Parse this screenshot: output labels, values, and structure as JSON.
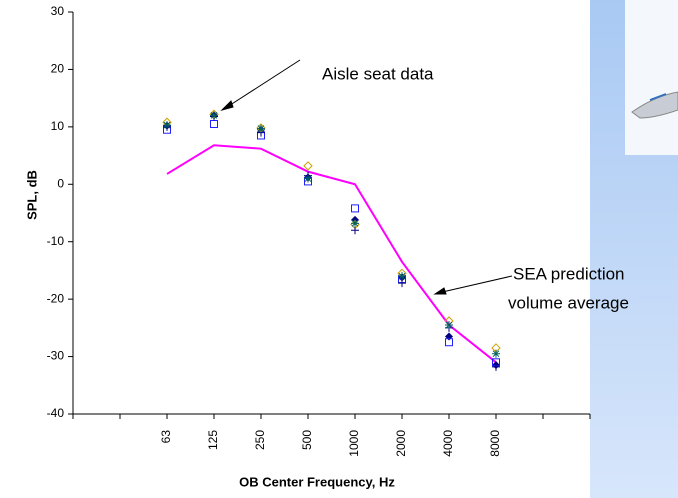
{
  "chart_data": {
    "type": "line",
    "y_label": "SPL, dB",
    "x_label": "OB Center Frequency, Hz",
    "categories": [
      null,
      null,
      "63",
      "125",
      "250",
      "500",
      "1000",
      "2000",
      "4000",
      "8000",
      null,
      null
    ],
    "ylim": [
      -40,
      30
    ],
    "yticks": [
      -40,
      -30,
      -20,
      -10,
      0,
      10,
      20,
      30
    ],
    "grid": false,
    "series": [
      {
        "style": "line",
        "color": "#ff00ff",
        "values": [
          null,
          null,
          1.8,
          6.8,
          6.2,
          2.2,
          0,
          -13.5,
          -24.5,
          -31,
          null,
          null
        ]
      },
      {
        "style": "diamond",
        "color": "#000080",
        "values": [
          null,
          null,
          10.2,
          12,
          9.5,
          1.2,
          -6.2,
          -16.2,
          -26.5,
          -31.5,
          null,
          null
        ]
      },
      {
        "style": "square",
        "color": "#2020ff",
        "values": [
          null,
          null,
          9.5,
          10.5,
          8.5,
          0.5,
          -4.2,
          -16.5,
          -27.5,
          -31,
          null,
          null
        ]
      },
      {
        "style": "open-diamond",
        "color": "#c8a000",
        "values": [
          null,
          null,
          10.8,
          12.2,
          9.8,
          3.2,
          -7,
          -15.5,
          -23.8,
          -28.5,
          null,
          null
        ]
      },
      {
        "style": "plus",
        "color": "#000080",
        "values": [
          null,
          null,
          10,
          11.8,
          9,
          1.5,
          -8,
          -17.2,
          -25,
          -31.8,
          null,
          null
        ]
      },
      {
        "style": "asterisk",
        "color": "#006060",
        "values": [
          null,
          null,
          10.3,
          12,
          9.7,
          1,
          -6.8,
          -16,
          -24.5,
          -29.5,
          null,
          null
        ]
      }
    ],
    "annotations": [
      "Aisle seat data",
      "SEA prediction",
      "volume average"
    ]
  }
}
